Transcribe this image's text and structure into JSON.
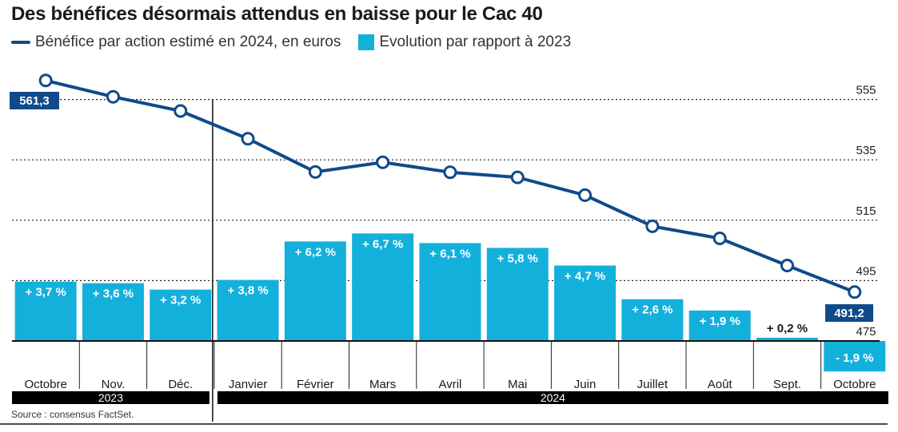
{
  "title": "Des bénéfices désormais attendus en baisse pour le Cac 40",
  "source": "Source : consensus FactSet.",
  "colors": {
    "line": "#0f4a8a",
    "bar": "#14b0dc",
    "label_box": "#0f4a8a",
    "text": "#1a1a1a"
  },
  "chart_data": {
    "type": "bar+line",
    "title": "Des bénéfices désormais attendus en baisse pour le Cac 40",
    "categories": [
      "Octobre",
      "Nov.",
      "Déc.",
      "Janvier",
      "Février",
      "Mars",
      "Avril",
      "Mai",
      "Juin",
      "Juillet",
      "Août",
      "Sept.",
      "Octobre"
    ],
    "year_groups": [
      {
        "label": "2023",
        "count": 3
      },
      {
        "label": "2024",
        "count": 10
      }
    ],
    "series": [
      {
        "name": "Bénéfice par action estimé en 2024, en euros",
        "type": "line",
        "values": [
          561.3,
          555.9,
          551.2,
          542,
          531,
          534.2,
          530.9,
          529.2,
          523.3,
          513,
          509,
          500,
          491.2
        ],
        "labels": [
          "561,3",
          null,
          null,
          null,
          null,
          null,
          null,
          null,
          null,
          null,
          null,
          null,
          "491,2"
        ]
      },
      {
        "name": "Evolution par rapport à 2023",
        "type": "bar",
        "values": [
          3.7,
          3.6,
          3.2,
          3.8,
          6.2,
          6.7,
          6.1,
          5.8,
          4.7,
          2.6,
          1.9,
          0.2,
          -1.9
        ],
        "labels": [
          "+ 3,7 %",
          "+ 3,6 %",
          "+ 3,2 %",
          "+ 3,8 %",
          "+ 6,2 %",
          "+ 6,7 %",
          "+ 6,1 %",
          "+ 5,8 %",
          "+ 4,7 %",
          "+ 2,6 %",
          "+ 1,9 %",
          "+ 0,2 %",
          "- 1,9 %"
        ]
      }
    ],
    "y_axis_right": {
      "ticks": [
        475,
        495,
        515,
        535,
        555
      ],
      "tick_labels": [
        "475",
        "495",
        "515",
        "535",
        "555"
      ],
      "range": [
        475,
        565
      ]
    },
    "grid": "dotted horizontal at ticks",
    "legend": "top-left"
  }
}
